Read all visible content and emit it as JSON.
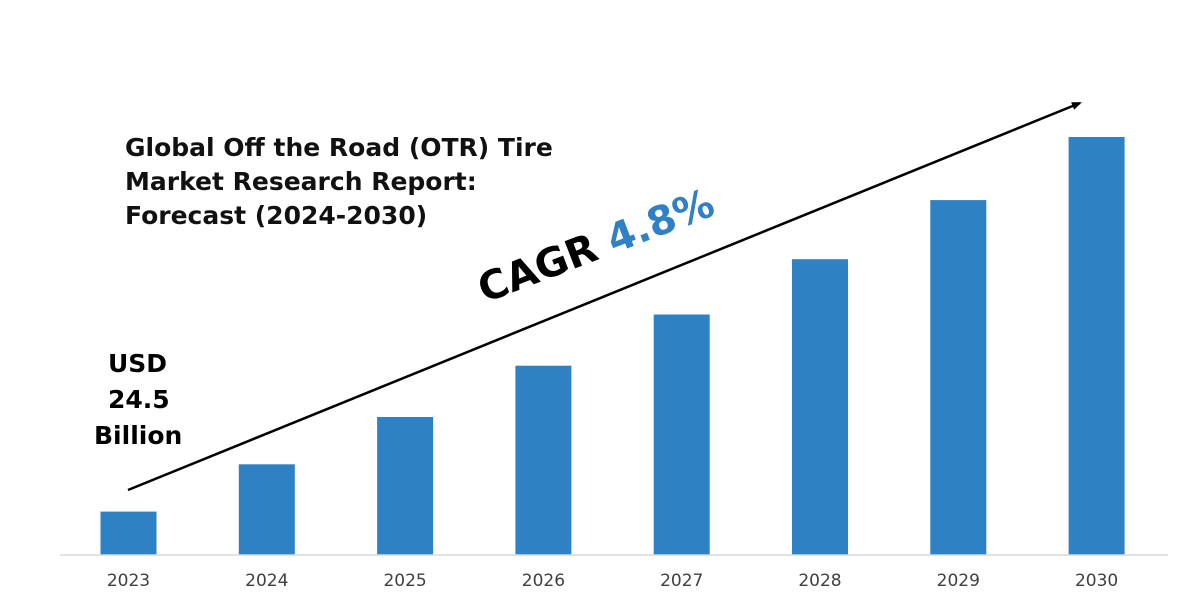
{
  "title_lines": [
    "Global Off the Road (OTR) Tire",
    "Market Research Report:",
    "Forecast (2024-2030)"
  ],
  "start_label": {
    "line1": "USD",
    "line2": "24.5",
    "line3": "Billion"
  },
  "cagr": {
    "word": "CAGR",
    "value": "4.8%"
  },
  "colors": {
    "bar": "#2e81c3",
    "axis": "#d9d9d9",
    "arrow": "#000000",
    "cagr_value": "#2f80c4",
    "tick_text": "#404040"
  },
  "chart_data": {
    "type": "bar",
    "title": "Global Off the Road (OTR) Tire Market Research Report: Forecast (2024-2030)",
    "categories": [
      "2023",
      "2024",
      "2025",
      "2026",
      "2027",
      "2028",
      "2029",
      "2030"
    ],
    "values": [
      24.5,
      25.7,
      26.9,
      28.2,
      29.5,
      30.9,
      32.4,
      34.0
    ],
    "ylabel": "",
    "xlabel": "",
    "ylim": [
      23.4,
      34.0
    ],
    "grid": false,
    "legend": "none",
    "annotations": [
      "USD 24.5 Billion",
      "CAGR 4.8%"
    ]
  }
}
